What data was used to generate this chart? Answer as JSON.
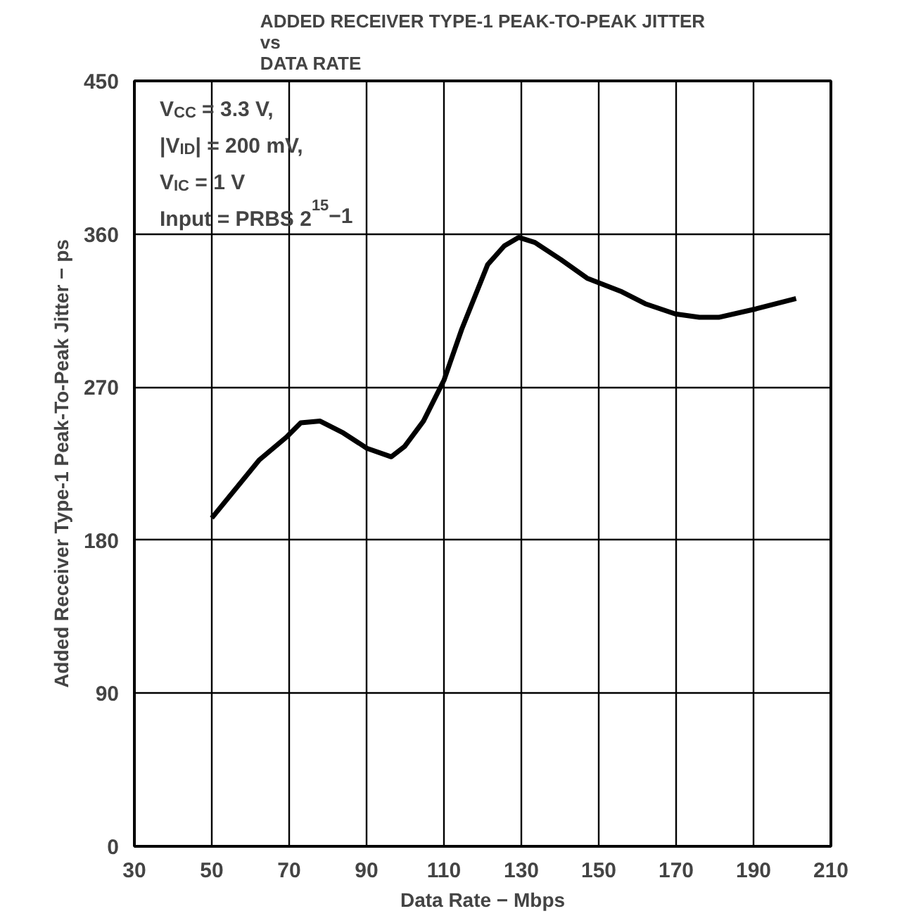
{
  "chart_data": {
    "type": "line",
    "title": "ADDED RECEIVER TYPE-1 PEAK-TO-PEAK JITTER\nvs\nDATA RATE",
    "xlabel": "Data Rate − Mbps",
    "ylabel": "Added Receiver Type-1 Peak-To-Peak Jitter − ps",
    "annotations": [
      "V$_{CC}$ = 3.3 V,",
      "|V$_{ID}$| = 200 mV,",
      "V$_{IC}$ = 1 V",
      "Input = PRBS 2$^{15}$−1"
    ],
    "x": [
      50,
      62.2,
      69.5,
      73,
      78,
      84,
      90.1,
      96.4,
      99.8,
      104.7,
      110,
      114.6,
      121.3,
      125.6,
      129.3,
      133.5,
      140.2,
      147,
      156,
      162,
      169.8,
      176,
      181,
      190.7,
      201
    ],
    "series": [
      {
        "color": "#000000",
        "values": [
          193,
          227,
          241,
          249,
          250,
          243,
          234,
          229,
          235,
          250,
          274,
          304,
          342,
          353,
          358,
          355,
          345,
          334,
          326,
          319,
          313,
          311,
          311,
          316,
          322
        ]
      }
    ],
    "xlim": [
      30,
      210
    ],
    "ylim": [
      0,
      450
    ],
    "xticks": [
      30,
      50,
      70,
      90,
      110,
      130,
      150,
      170,
      190,
      210
    ],
    "yticks": [
      0,
      90,
      180,
      270,
      360,
      450
    ],
    "grid": true,
    "marker": "none",
    "line_style": "solid"
  }
}
